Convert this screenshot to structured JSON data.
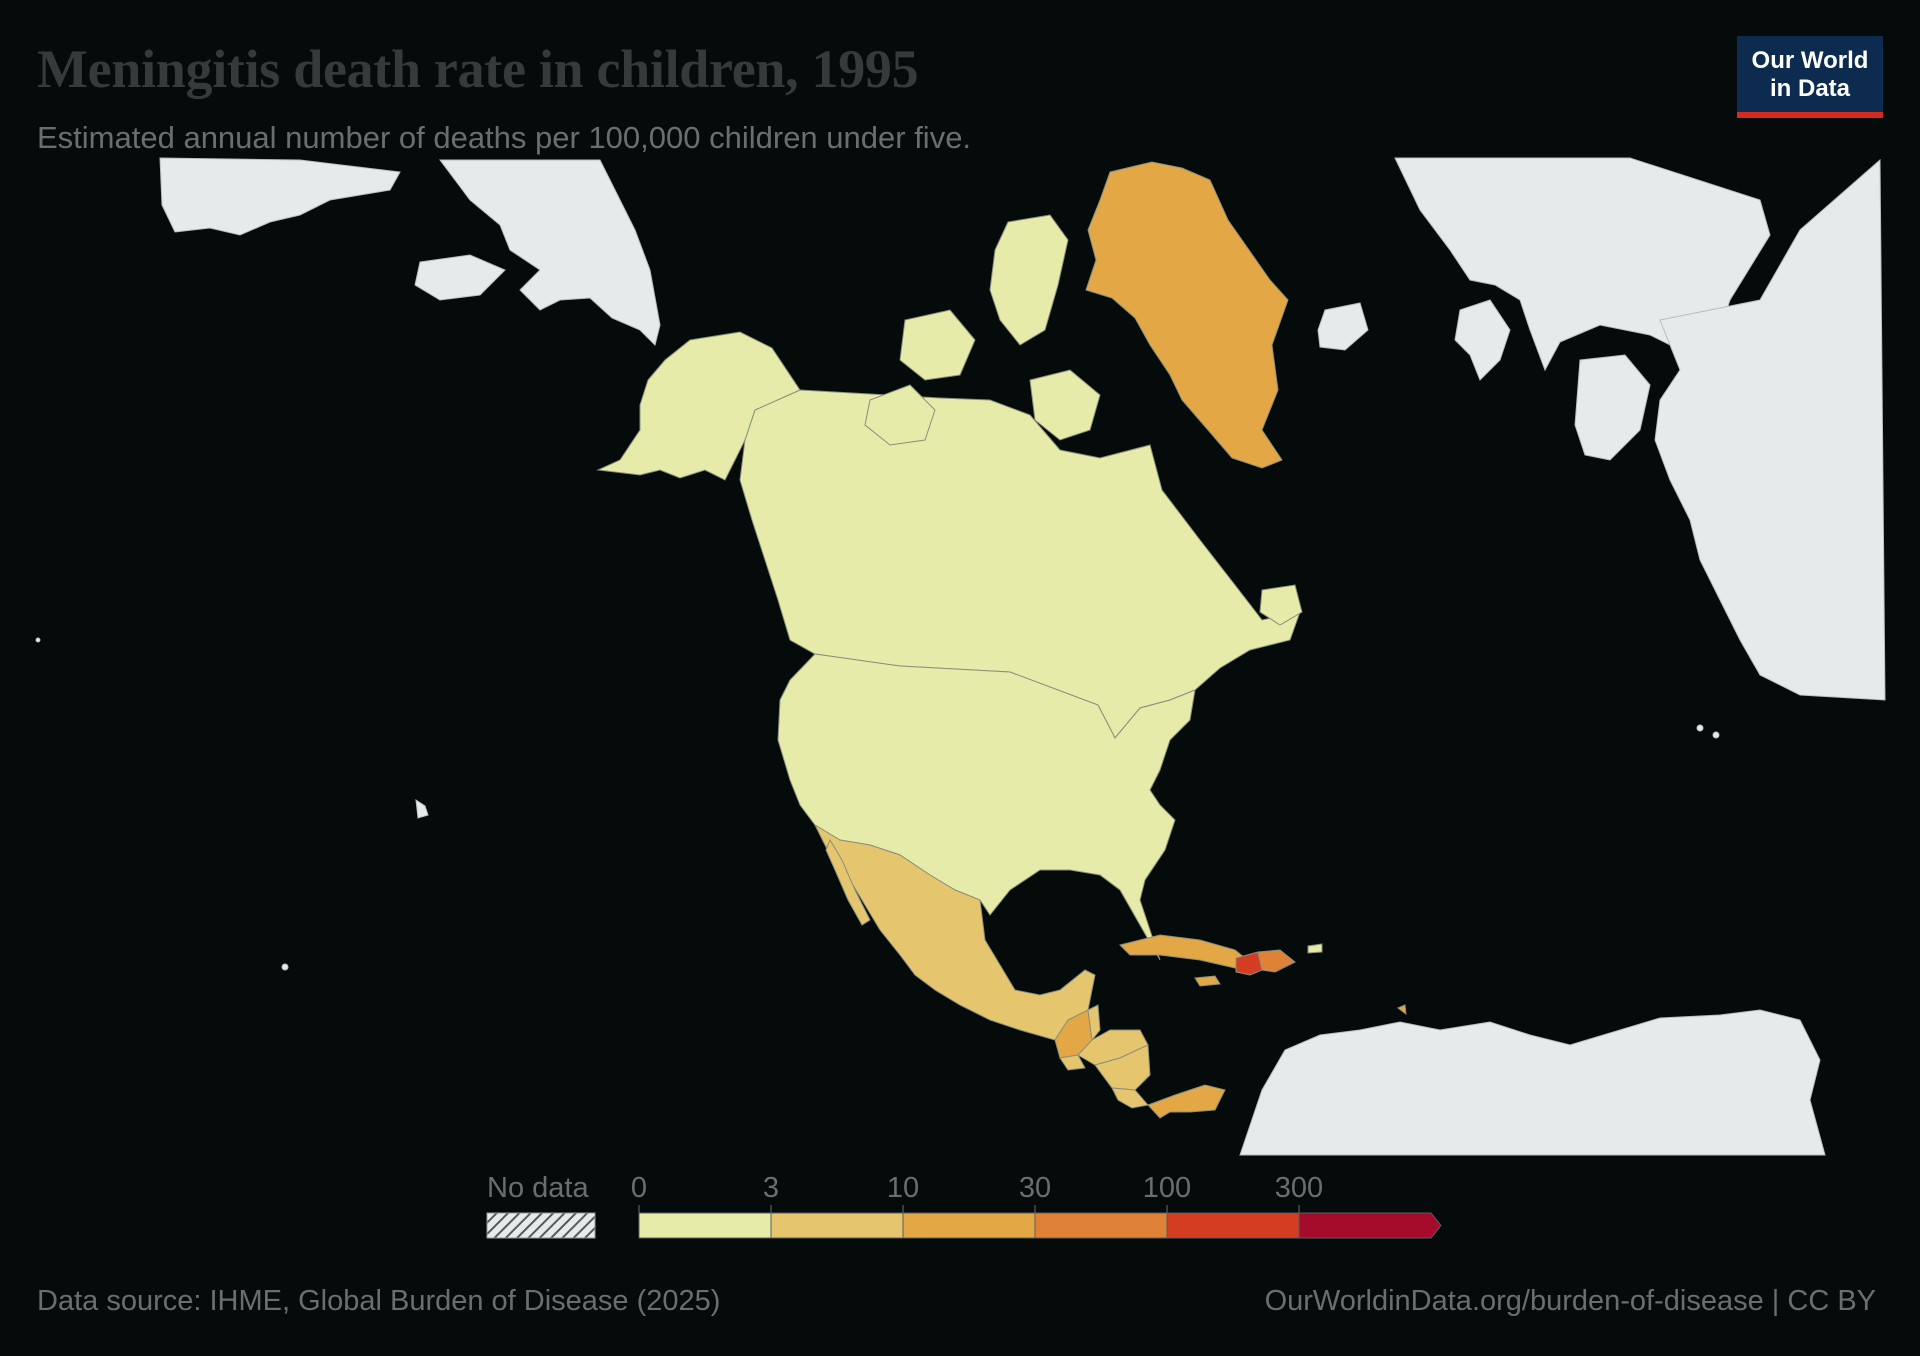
{
  "header": {
    "title": "Meningitis death rate in children, 1995",
    "subtitle": "Estimated annual number of deaths per 100,000 children under five."
  },
  "logo": {
    "line1": "Our World",
    "line2": "in Data"
  },
  "colors": {
    "background": "#050a0a",
    "no_data_land": "#e7eaea",
    "scale": [
      "#e6ebaa",
      "#e5c66f",
      "#e3a745",
      "#df8136",
      "#d43d22",
      "#a50b2a"
    ]
  },
  "legend": {
    "no_data_label": "No data",
    "ticks": [
      "0",
      "3",
      "10",
      "30",
      "100",
      "300"
    ]
  },
  "chart_data": {
    "type": "choropleth",
    "title": "Meningitis death rate in children, 1995",
    "subtitle": "Estimated annual number of deaths per 100,000 children under five.",
    "bins": [
      "0",
      "3",
      "10",
      "30",
      "100",
      "300"
    ],
    "regions": [
      {
        "name": "Canada",
        "bin": "0–3"
      },
      {
        "name": "United States",
        "bin": "0–3"
      },
      {
        "name": "Greenland",
        "bin": "10–30"
      },
      {
        "name": "Mexico",
        "bin": "3–10"
      },
      {
        "name": "Guatemala",
        "bin": "10–30"
      },
      {
        "name": "Honduras",
        "bin": "3–10"
      },
      {
        "name": "Nicaragua",
        "bin": "3–10"
      },
      {
        "name": "El Salvador",
        "bin": "3–10"
      },
      {
        "name": "Costa Rica",
        "bin": "3–10"
      },
      {
        "name": "Panama",
        "bin": "10–30"
      },
      {
        "name": "Cuba",
        "bin": "10–30"
      },
      {
        "name": "Haiti",
        "bin": "100–300"
      },
      {
        "name": "Dominican Republic",
        "bin": "30–100"
      },
      {
        "name": "Jamaica",
        "bin": "10–30"
      },
      {
        "name": "Puerto Rico",
        "bin": "0–3"
      }
    ]
  },
  "footer": {
    "source": "Data source: IHME, Global Burden of Disease (2025)",
    "link": "OurWorldinData.org/burden-of-disease | CC BY"
  }
}
